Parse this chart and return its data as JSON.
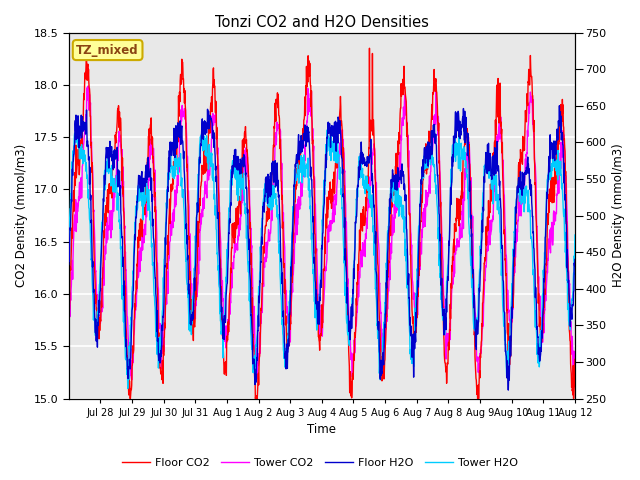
{
  "title": "Tonzi CO2 and H2O Densities",
  "xlabel": "Time",
  "ylabel_left": "CO2 Density (mmol/m3)",
  "ylabel_right": "H2O Density (mmol/m3)",
  "co2_ylim": [
    15.0,
    18.5
  ],
  "h2o_ylim": [
    250,
    750
  ],
  "co2_yticks": [
    15.0,
    15.5,
    16.0,
    16.5,
    17.0,
    17.5,
    18.0,
    18.5
  ],
  "h2o_yticks": [
    250,
    300,
    350,
    400,
    450,
    500,
    550,
    600,
    650,
    700,
    750
  ],
  "colors": {
    "floor_co2": "#FF0000",
    "tower_co2": "#FF00FF",
    "floor_h2o": "#0000CC",
    "tower_h2o": "#00CCFF"
  },
  "legend_labels": [
    "Floor CO2",
    "Tower CO2",
    "Floor H2O",
    "Tower H2O"
  ],
  "annotation_text": "TZ_mixed",
  "annotation_bg": "#FFFF99",
  "annotation_border": "#CCAA00",
  "background_color": "#E8E8E8",
  "grid_color": "#FFFFFF",
  "xtick_labels": [
    "Jul 28",
    "Jul 29",
    "Jul 30",
    "Jul 31",
    "Aug 1",
    "Aug 2",
    "Aug 3",
    "Aug 4",
    "Aug 5",
    "Aug 6",
    "Aug 7",
    "Aug 8",
    "Aug 9",
    "Aug 10",
    "Aug 11",
    "Aug 12"
  ],
  "linewidth": 1.0,
  "n_days": 16,
  "points_per_day": 96
}
